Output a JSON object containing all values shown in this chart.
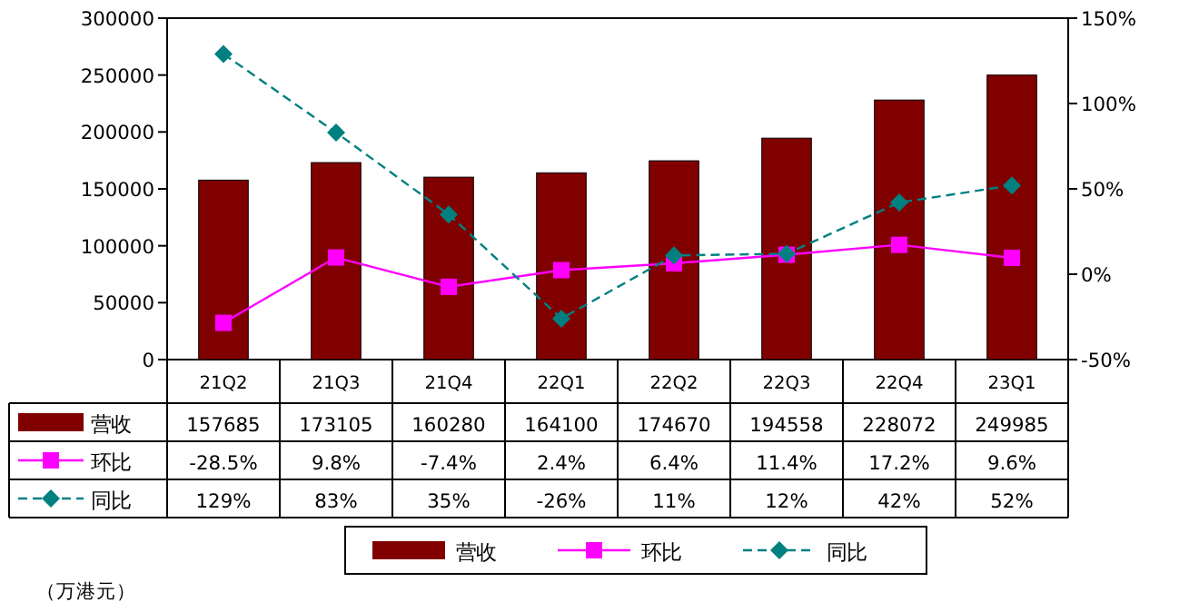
{
  "chart_data": {
    "type": "bar",
    "categories": [
      "21Q2",
      "21Q3",
      "21Q4",
      "22Q1",
      "22Q2",
      "22Q3",
      "22Q4",
      "23Q1"
    ],
    "series": [
      {
        "name": "营收",
        "color": "#800000",
        "values": [
          157685,
          173105,
          160280,
          164100,
          174670,
          194558,
          228072,
          249985
        ],
        "value_labels": [
          "157685",
          "173105",
          "160280",
          "164100",
          "174670",
          "194558",
          "228072",
          "249985"
        ]
      },
      {
        "name": "环比",
        "type": "line",
        "axis": "y2",
        "color": "#ff00ff",
        "marker": "square",
        "line_style": "solid",
        "values": [
          -28.5,
          9.8,
          -7.4,
          2.4,
          6.4,
          11.4,
          17.2,
          9.6
        ],
        "value_labels": [
          "-28.5%",
          "9.8%",
          "-7.4%",
          "2.4%",
          "6.4%",
          "11.4%",
          "17.2%",
          "9.6%"
        ]
      },
      {
        "name": "同比",
        "type": "line",
        "axis": "y2",
        "color": "#008080",
        "marker": "diamond",
        "line_style": "dashed",
        "values": [
          129,
          83,
          35,
          -26,
          11,
          12,
          42,
          52
        ],
        "value_labels": [
          "129%",
          "83%",
          "35%",
          "-26%",
          "11%",
          "12%",
          "42%",
          "52%"
        ]
      }
    ],
    "ylim": [
      0,
      300000
    ],
    "yticks": [
      0,
      50000,
      100000,
      150000,
      200000,
      250000,
      300000
    ],
    "y2lim": [
      -50,
      150
    ],
    "y2ticks": [
      {
        "value": -50,
        "label": "-50%"
      },
      {
        "value": 0,
        "label": "0%"
      },
      {
        "value": 50,
        "label": "50%"
      },
      {
        "value": 100,
        "label": "100%"
      },
      {
        "value": 150,
        "label": "150%"
      }
    ],
    "legend": "bottom",
    "annotations": [
      "（万港元）"
    ]
  }
}
